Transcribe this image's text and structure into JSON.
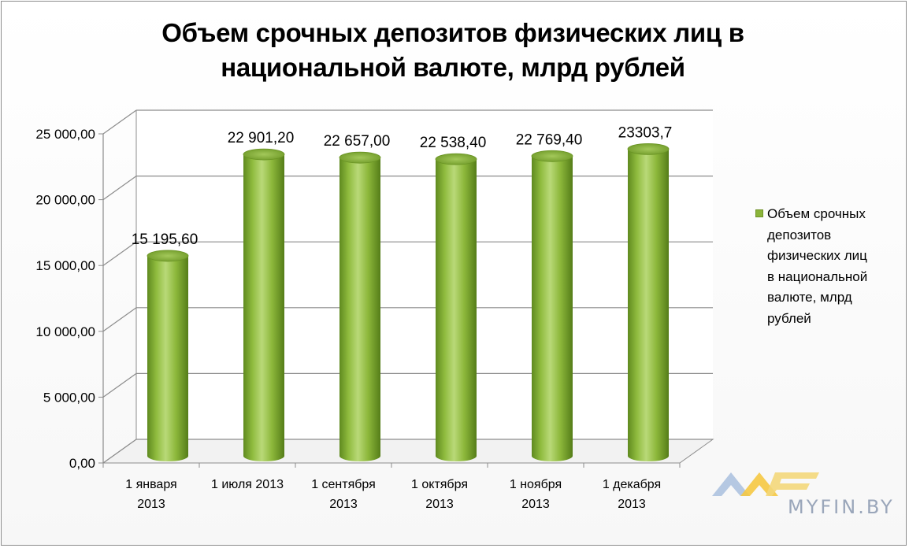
{
  "chart_data": {
    "type": "bar",
    "title_lines": [
      "Объем срочных депозитов физических лиц в",
      "национальной валюте, млрд рублей"
    ],
    "categories": [
      [
        "1 января",
        "2013"
      ],
      [
        "1 июля 2013"
      ],
      [
        "1 сентября",
        "2013"
      ],
      [
        "1 октября",
        "2013"
      ],
      [
        "1 ноября",
        "2013"
      ],
      [
        "1 декабря",
        "2013"
      ]
    ],
    "series": [
      {
        "name": "Объем срочных депозитов физических лиц в национальной валюте, млрд рублей",
        "values": [
          15195.6,
          22901.2,
          22657.0,
          22538.4,
          22769.4,
          23303.7
        ],
        "data_labels": [
          "15 195,60",
          "22 901,20",
          "22 657,00",
          "22 538,40",
          "22 769,40",
          "23303,7"
        ],
        "color": "#8bb43a"
      }
    ],
    "y_ticks": [
      "0,00",
      "5 000,00",
      "10 000,00",
      "15 000,00",
      "20 000,00",
      "25 000,00"
    ],
    "ylim": [
      0,
      25000
    ],
    "grid": true,
    "legend_position": "right",
    "style": "3d-cylinder"
  },
  "legend": {
    "label_lines": [
      "Объем срочных",
      "депозитов",
      "физических лиц",
      "в национальной",
      "валюте, млрд",
      "рублей"
    ]
  },
  "watermark": {
    "text": "MYFIN.BY"
  }
}
